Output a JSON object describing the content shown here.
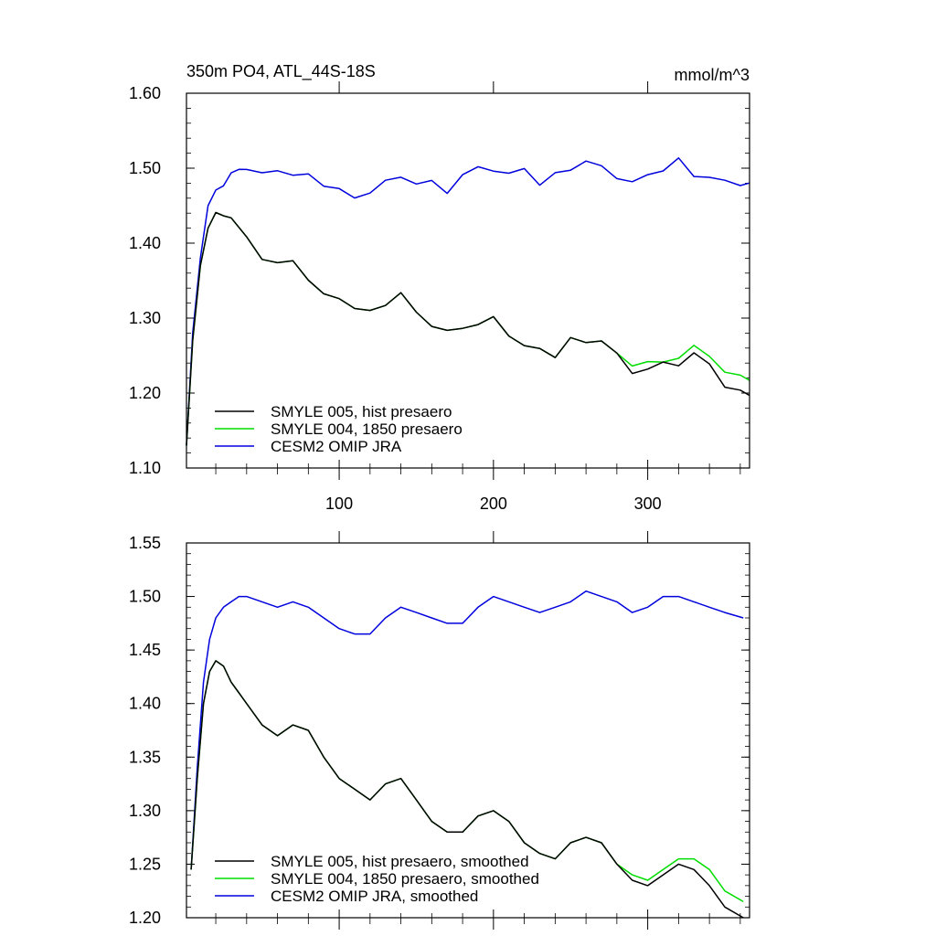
{
  "chart_data": [
    {
      "type": "line",
      "title": "350m PO4, ATL_44S-18S",
      "units": "mmol/m^3",
      "xlabel": "",
      "ylabel": "",
      "xlim": [
        1,
        366
      ],
      "ylim": [
        1.1,
        1.6
      ],
      "xticks": [
        100,
        200,
        300
      ],
      "yticks": [
        "1.10",
        "1.20",
        "1.30",
        "1.40",
        "1.50",
        "1.60"
      ],
      "legend_position": "bottom-left",
      "series": [
        {
          "name": "SMYLE 005, hist presaero",
          "color": "#000000",
          "x": [
            1,
            5,
            10,
            15,
            20,
            25,
            30,
            40,
            50,
            60,
            70,
            80,
            90,
            100,
            110,
            120,
            130,
            140,
            150,
            160,
            170,
            180,
            190,
            200,
            210,
            220,
            230,
            240,
            250,
            260,
            270,
            280,
            290,
            300,
            310,
            320,
            330,
            340,
            350,
            360,
            366
          ],
          "y": [
            1.13,
            1.27,
            1.37,
            1.42,
            1.44,
            1.44,
            1.43,
            1.41,
            1.38,
            1.37,
            1.38,
            1.35,
            1.33,
            1.33,
            1.31,
            1.31,
            1.32,
            1.33,
            1.31,
            1.29,
            1.28,
            1.29,
            1.29,
            1.3,
            1.28,
            1.26,
            1.26,
            1.25,
            1.27,
            1.27,
            1.27,
            1.25,
            1.23,
            1.23,
            1.24,
            1.24,
            1.25,
            1.24,
            1.21,
            1.2,
            1.2
          ]
        },
        {
          "name": "SMYLE 004, 1850 presaero",
          "color": "#00dd00",
          "x": [
            1,
            5,
            10,
            15,
            20,
            25,
            30,
            40,
            50,
            60,
            70,
            80,
            90,
            100,
            110,
            120,
            130,
            140,
            150,
            160,
            170,
            180,
            190,
            200,
            210,
            220,
            230,
            240,
            250,
            260,
            270,
            280,
            290,
            300,
            310,
            320,
            330,
            340,
            350,
            360,
            366
          ],
          "y": [
            1.13,
            1.27,
            1.37,
            1.42,
            1.44,
            1.44,
            1.43,
            1.41,
            1.38,
            1.37,
            1.38,
            1.35,
            1.33,
            1.33,
            1.31,
            1.31,
            1.32,
            1.33,
            1.31,
            1.29,
            1.28,
            1.29,
            1.29,
            1.3,
            1.28,
            1.26,
            1.26,
            1.25,
            1.27,
            1.27,
            1.27,
            1.25,
            1.24,
            1.24,
            1.24,
            1.25,
            1.26,
            1.25,
            1.23,
            1.22,
            1.22
          ]
        },
        {
          "name": "CESM2 OMIP JRA",
          "color": "#0000dd",
          "x": [
            1,
            5,
            10,
            15,
            20,
            25,
            30,
            35,
            40,
            50,
            60,
            70,
            80,
            90,
            100,
            110,
            120,
            130,
            140,
            150,
            160,
            170,
            180,
            190,
            200,
            210,
            220,
            230,
            240,
            250,
            260,
            270,
            280,
            290,
            300,
            310,
            320,
            330,
            340,
            350,
            360,
            366
          ],
          "y": [
            1.13,
            1.28,
            1.38,
            1.45,
            1.47,
            1.48,
            1.49,
            1.5,
            1.5,
            1.49,
            1.5,
            1.49,
            1.49,
            1.48,
            1.47,
            1.46,
            1.47,
            1.48,
            1.49,
            1.48,
            1.48,
            1.47,
            1.49,
            1.5,
            1.5,
            1.49,
            1.5,
            1.48,
            1.49,
            1.5,
            1.51,
            1.5,
            1.49,
            1.48,
            1.49,
            1.5,
            1.51,
            1.49,
            1.49,
            1.48,
            1.48,
            1.48
          ]
        }
      ]
    },
    {
      "type": "line",
      "title": "",
      "xlabel": "",
      "ylabel": "",
      "xlim": [
        1,
        366
      ],
      "ylim": [
        1.2,
        1.55
      ],
      "xticks": [
        100,
        200,
        300
      ],
      "yticks": [
        "1.20",
        "1.25",
        "1.30",
        "1.35",
        "1.40",
        "1.45",
        "1.50",
        "1.55"
      ],
      "legend_position": "bottom-left",
      "series": [
        {
          "name": "SMYLE 005, hist presaero, smoothed",
          "color": "#000000",
          "x": [
            4,
            8,
            12,
            16,
            20,
            25,
            30,
            35,
            40,
            50,
            60,
            70,
            80,
            90,
            100,
            110,
            120,
            130,
            140,
            150,
            160,
            170,
            180,
            190,
            200,
            210,
            220,
            230,
            240,
            250,
            260,
            270,
            280,
            290,
            300,
            310,
            320,
            330,
            340,
            350,
            362
          ],
          "y": [
            1.245,
            1.33,
            1.4,
            1.43,
            1.44,
            1.435,
            1.42,
            1.41,
            1.4,
            1.38,
            1.37,
            1.38,
            1.375,
            1.35,
            1.33,
            1.32,
            1.31,
            1.325,
            1.33,
            1.31,
            1.29,
            1.28,
            1.28,
            1.295,
            1.3,
            1.29,
            1.27,
            1.26,
            1.255,
            1.27,
            1.275,
            1.27,
            1.25,
            1.235,
            1.23,
            1.24,
            1.25,
            1.245,
            1.23,
            1.21,
            1.2
          ]
        },
        {
          "name": "SMYLE 004, 1850 presaero, smoothed",
          "color": "#00dd00",
          "x": [
            4,
            8,
            12,
            16,
            20,
            25,
            30,
            35,
            40,
            50,
            60,
            70,
            80,
            90,
            100,
            110,
            120,
            130,
            140,
            150,
            160,
            170,
            180,
            190,
            200,
            210,
            220,
            230,
            240,
            250,
            260,
            270,
            280,
            290,
            300,
            310,
            320,
            330,
            340,
            350,
            362
          ],
          "y": [
            1.245,
            1.33,
            1.4,
            1.43,
            1.44,
            1.435,
            1.42,
            1.41,
            1.4,
            1.38,
            1.37,
            1.38,
            1.375,
            1.35,
            1.33,
            1.32,
            1.31,
            1.325,
            1.33,
            1.31,
            1.29,
            1.28,
            1.28,
            1.295,
            1.3,
            1.29,
            1.27,
            1.26,
            1.255,
            1.27,
            1.275,
            1.27,
            1.25,
            1.24,
            1.235,
            1.245,
            1.255,
            1.255,
            1.245,
            1.225,
            1.215
          ]
        },
        {
          "name": "CESM2 OMIP JRA, smoothed",
          "color": "#0000dd",
          "x": [
            4,
            8,
            12,
            16,
            20,
            25,
            30,
            35,
            40,
            50,
            60,
            70,
            80,
            90,
            100,
            110,
            120,
            130,
            140,
            150,
            160,
            170,
            180,
            190,
            200,
            210,
            220,
            230,
            240,
            250,
            260,
            270,
            280,
            290,
            300,
            310,
            320,
            330,
            340,
            350,
            362
          ],
          "y": [
            1.245,
            1.34,
            1.42,
            1.46,
            1.48,
            1.49,
            1.495,
            1.5,
            1.5,
            1.495,
            1.49,
            1.495,
            1.49,
            1.48,
            1.47,
            1.465,
            1.465,
            1.48,
            1.49,
            1.485,
            1.48,
            1.475,
            1.475,
            1.49,
            1.5,
            1.495,
            1.49,
            1.485,
            1.49,
            1.495,
            1.505,
            1.5,
            1.495,
            1.485,
            1.49,
            1.5,
            1.5,
            1.495,
            1.49,
            1.485,
            1.48
          ]
        }
      ]
    }
  ]
}
